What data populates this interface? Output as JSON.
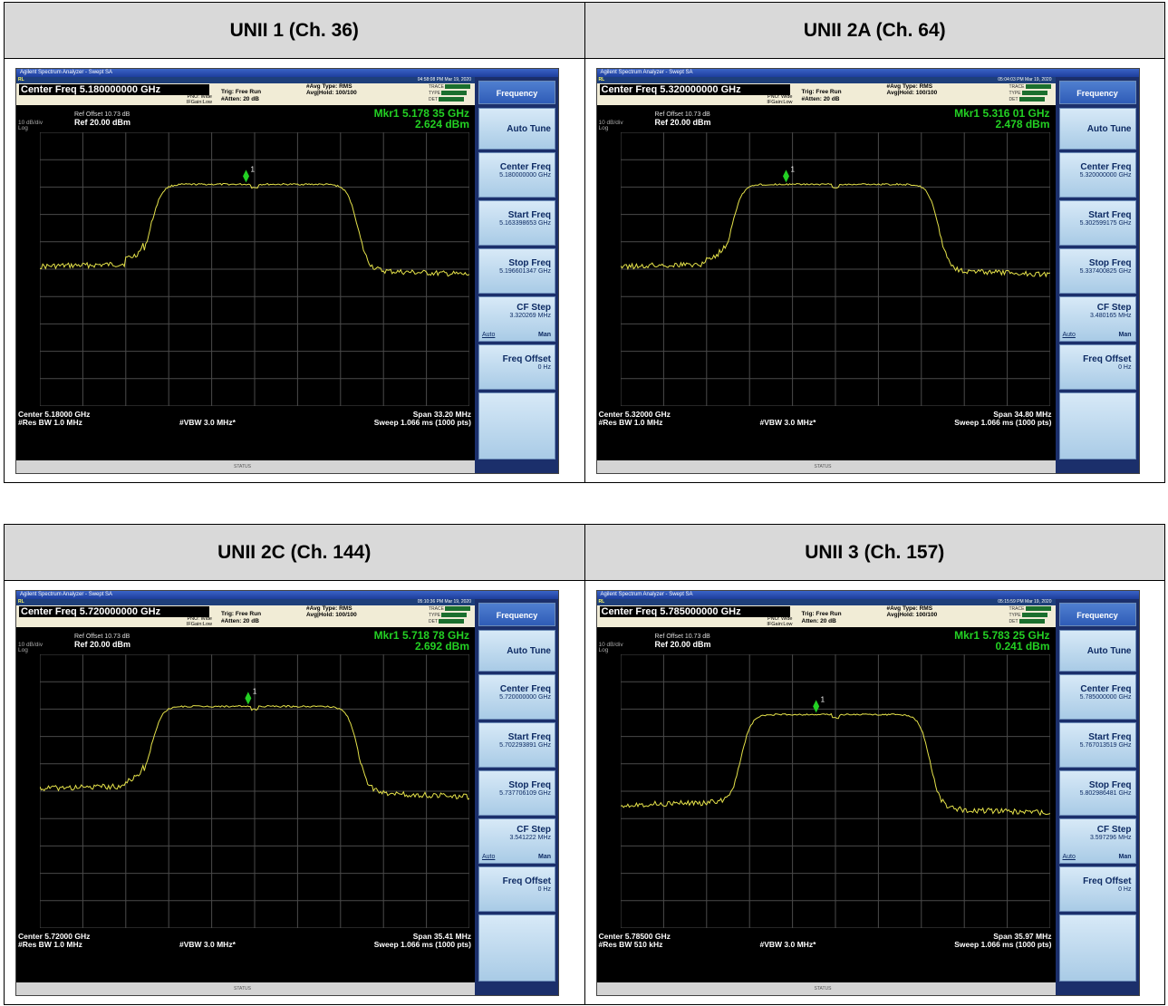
{
  "sections": [
    {
      "headers": [
        "UNII 1 (Ch. 36)",
        "UNII 2A (Ch. 64)"
      ],
      "analyzers": [
        {
          "app_title": "Agilent Spectrum Analyzer - Swept SA",
          "status_left": "RL",
          "datetime": "04:58:08 PM Mar 19, 2020",
          "center_freq": "Center Freq 5.180000000 GHz",
          "pno": "PNO: Wide",
          "ifgain": "IFGain:Low",
          "trig": "Trig: Free Run",
          "atten": "#Atten: 20 dB",
          "avg_type": "#Avg Type: RMS",
          "avg_hold": "Avg|Hold: 100/100",
          "ref_offset": "Ref Offset 10.73 dB",
          "ref_level": "Ref 20.00 dBm",
          "scale": "10 dB/div",
          "scale_log": "Log",
          "mkr_freq": "Mkr1 5.178 35 GHz",
          "mkr_level": "2.624 dBm",
          "center": "Center 5.18000 GHz",
          "res_bw": "#Res BW 1.0 MHz",
          "vbw": "#VBW 3.0 MHz*",
          "span": "Span 33.20 MHz",
          "sweep": "Sweep  1.066 ms (1000 pts)",
          "status": "STATUS",
          "softkeys": {
            "title": "Frequency",
            "auto_tune": "Auto Tune",
            "center_freq": "Center Freq",
            "center_val": "5.180000000 GHz",
            "start_freq": "Start Freq",
            "start_val": "5.163398653 GHz",
            "stop_freq": "Stop Freq",
            "stop_val": "5.196601347 GHz",
            "cf_step": "CF Step",
            "cf_val": "3.320269 MHz",
            "auto": "Auto",
            "man": "Man",
            "freq_offset": "Freq Offset",
            "offset_val": "0 Hz"
          },
          "trace": {
            "marker_x": 0.48,
            "shape": "a"
          }
        },
        {
          "app_title": "Agilent Spectrum Analyzer - Swept SA",
          "status_left": "RL",
          "datetime": "05:04:03 PM Mar 19, 2020",
          "center_freq": "Center Freq 5.320000000 GHz",
          "pno": "PNO: Wide",
          "ifgain": "IFGain:Low",
          "trig": "Trig: Free Run",
          "atten": "#Atten: 20 dB",
          "avg_type": "#Avg Type: RMS",
          "avg_hold": "Avg|Hold: 100/100",
          "ref_offset": "Ref Offset 10.73 dB",
          "ref_level": "Ref 20.00 dBm",
          "scale": "10 dB/div",
          "scale_log": "Log",
          "mkr_freq": "Mkr1 5.316 01 GHz",
          "mkr_level": "2.478 dBm",
          "center": "Center 5.32000 GHz",
          "res_bw": "#Res BW 1.0 MHz",
          "vbw": "#VBW 3.0 MHz*",
          "span": "Span 34.80 MHz",
          "sweep": "Sweep  1.066 ms (1000 pts)",
          "status": "STATUS",
          "softkeys": {
            "title": "Frequency",
            "auto_tune": "Auto Tune",
            "center_freq": "Center Freq",
            "center_val": "5.320000000 GHz",
            "start_freq": "Start Freq",
            "start_val": "5.302599175 GHz",
            "stop_freq": "Stop Freq",
            "stop_val": "5.337400825 GHz",
            "cf_step": "CF Step",
            "cf_val": "3.480165 MHz",
            "auto": "Auto",
            "man": "Man",
            "freq_offset": "Freq Offset",
            "offset_val": "0 Hz"
          },
          "trace": {
            "marker_x": 0.385,
            "shape": "a"
          }
        }
      ]
    },
    {
      "headers": [
        "UNII 2C (Ch. 144)",
        "UNII 3 (Ch. 157)"
      ],
      "analyzers": [
        {
          "app_title": "Agilent Spectrum Analyzer - Swept SA",
          "status_left": "RL",
          "datetime": "05:10:36 PM Mar 19, 2020",
          "center_freq": "Center Freq 5.720000000 GHz",
          "pno": "PNO: Wide",
          "ifgain": "IFGain:Low",
          "trig": "Trig: Free Run",
          "atten": "#Atten: 20 dB",
          "avg_type": "#Avg Type: RMS",
          "avg_hold": "Avg|Hold: 100/100",
          "ref_offset": "Ref Offset 10.73 dB",
          "ref_level": "Ref 20.00 dBm",
          "scale": "10 dB/div",
          "scale_log": "Log",
          "mkr_freq": "Mkr1 5.718 78 GHz",
          "mkr_level": "2.692 dBm",
          "center": "Center 5.72000 GHz",
          "res_bw": "#Res BW 1.0 MHz",
          "vbw": "#VBW 3.0 MHz*",
          "span": "Span 35.41 MHz",
          "sweep": "Sweep  1.066 ms (1000 pts)",
          "status": "STATUS",
          "softkeys": {
            "title": "Frequency",
            "auto_tune": "Auto Tune",
            "center_freq": "Center Freq",
            "center_val": "5.720000000 GHz",
            "start_freq": "Start Freq",
            "start_val": "5.702293891 GHz",
            "stop_freq": "Stop Freq",
            "stop_val": "5.737706109 GHz",
            "cf_step": "CF Step",
            "cf_val": "3.541222 MHz",
            "auto": "Auto",
            "man": "Man",
            "freq_offset": "Freq Offset",
            "offset_val": "0 Hz"
          },
          "trace": {
            "marker_x": 0.485,
            "shape": "a"
          }
        },
        {
          "app_title": "Agilent Spectrum Analyzer - Swept SA",
          "status_left": "RL",
          "datetime": "05:15:59 PM Mar 19, 2020",
          "center_freq": "Center Freq 5.785000000 GHz",
          "pno": "PNO: Wide",
          "ifgain": "IFGain:Low",
          "trig": "Trig: Free Run",
          "atten": "Atten: 20 dB",
          "avg_type": "#Avg Type: RMS",
          "avg_hold": "Avg|Hold: 100/100",
          "ref_offset": "Ref Offset 10.73 dB",
          "ref_level": "Ref 20.00 dBm",
          "scale": "10 dB/div",
          "scale_log": "Log",
          "mkr_freq": "Mkr1 5.783 25 GHz",
          "mkr_level": "0.241 dBm",
          "center": "Center 5.78500 GHz",
          "res_bw": "#Res BW 510 kHz",
          "vbw": "#VBW 3.0 MHz*",
          "span": "Span 35.97 MHz",
          "sweep": "Sweep  1.066 ms (1000 pts)",
          "status": "STATUS",
          "softkeys": {
            "title": "Frequency",
            "auto_tune": "Auto Tune",
            "center_freq": "Center Freq",
            "center_val": "5.785000000 GHz",
            "start_freq": "Start Freq",
            "start_val": "5.767013519 GHz",
            "stop_freq": "Stop Freq",
            "stop_val": "5.802986481 GHz",
            "cf_step": "CF Step",
            "cf_val": "3.597296 MHz",
            "auto": "Auto",
            "man": "Man",
            "freq_offset": "Freq Offset",
            "offset_val": "0 Hz"
          },
          "trace": {
            "marker_x": 0.455,
            "shape": "b"
          }
        }
      ]
    }
  ],
  "colors": {
    "trace": "#e5e24a",
    "marker": "#23d023",
    "grid": "#4a4a4a",
    "softkey": "#a9cbe6"
  }
}
